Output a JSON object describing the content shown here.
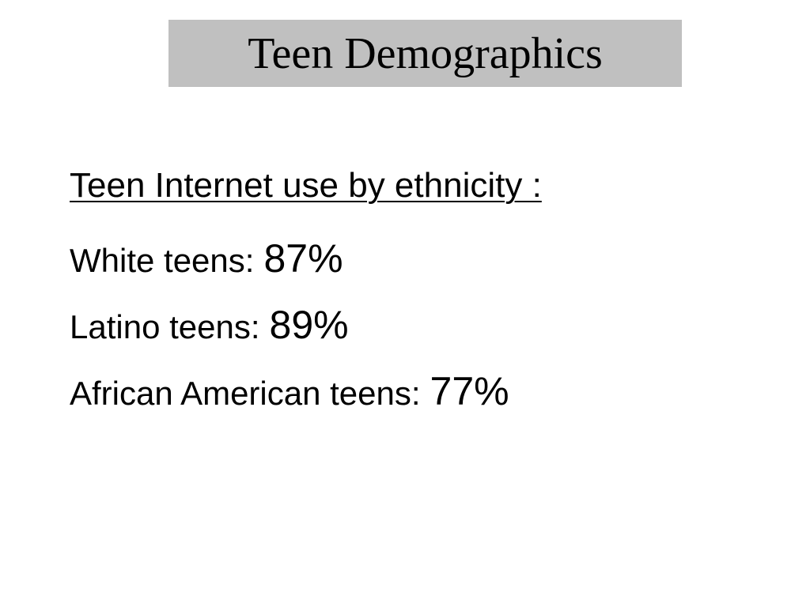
{
  "header": {
    "title": "Teen Demographics"
  },
  "body": {
    "subtitle": "Teen Internet use by ethnicity :",
    "items": [
      {
        "label": "White teens:",
        "value": "87%"
      },
      {
        "label": "Latino teens:",
        "value": "89%"
      },
      {
        "label": "African American teens:",
        "value": "77%"
      }
    ]
  }
}
